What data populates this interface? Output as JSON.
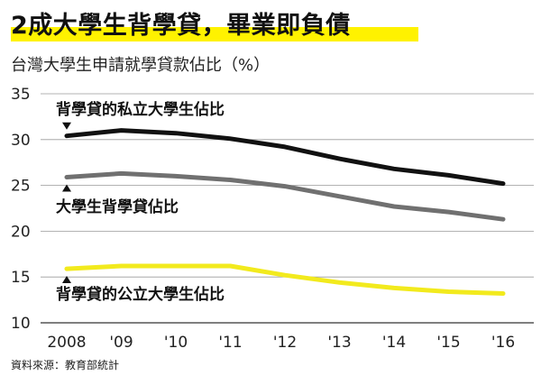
{
  "header": {
    "title": "2成大學生背學貸，畢業即負債",
    "subtitle": "台灣大學生申請就學貸款佔比（%）",
    "source": "資料來源：教育部統計"
  },
  "colors": {
    "highlight": "#fff200",
    "private": "#111111",
    "all": "#707070",
    "public": "#f2ea1d",
    "grid": "#9a9a9a"
  },
  "chart_data": {
    "type": "line",
    "x": [
      "2008",
      "'09",
      "'10",
      "'11",
      "'12",
      "'13",
      "'14",
      "'15",
      "'16"
    ],
    "ylim": [
      10,
      35
    ],
    "yticks": [
      10,
      15,
      20,
      25,
      30,
      35
    ],
    "grid": true,
    "series": [
      {
        "name": "背學貸的私立大學生佔比",
        "values": [
          30.4,
          31.0,
          30.7,
          30.1,
          29.2,
          27.9,
          26.8,
          26.1,
          25.2
        ]
      },
      {
        "name": "大學生背學貸佔比",
        "values": [
          25.9,
          26.3,
          26.0,
          25.6,
          24.9,
          23.8,
          22.7,
          22.1,
          21.3
        ]
      },
      {
        "name": "背學貸的公立大學生佔比",
        "values": [
          15.9,
          16.2,
          16.2,
          16.2,
          15.2,
          14.4,
          13.8,
          13.4,
          13.2
        ]
      }
    ]
  }
}
